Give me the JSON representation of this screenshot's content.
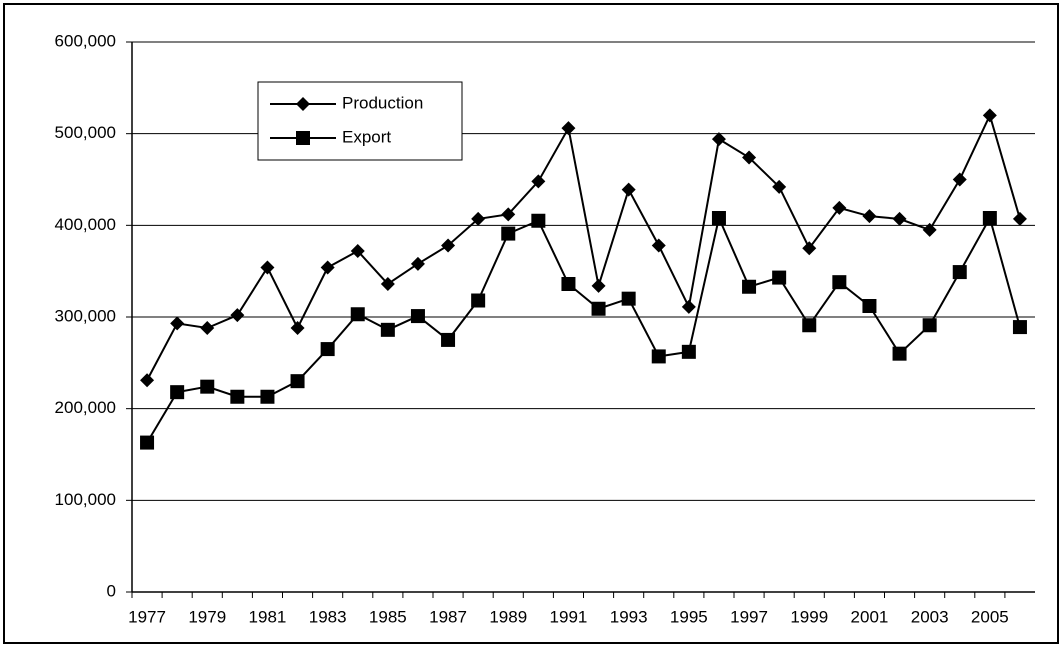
{
  "chart_data": {
    "type": "line",
    "categories": [
      "1977",
      null,
      "1979",
      null,
      "1981",
      null,
      "1983",
      null,
      "1985",
      null,
      "1987",
      null,
      "1989",
      null,
      "1991",
      null,
      "1993",
      null,
      "1995",
      null,
      "1997",
      null,
      "1999",
      null,
      "2001",
      null,
      "2003",
      null,
      "2005",
      null
    ],
    "series": [
      {
        "name": "Production",
        "color": "#000000",
        "marker": "diamond",
        "values": [
          231000,
          293000,
          288000,
          302000,
          354000,
          288000,
          354000,
          372000,
          336000,
          358000,
          378000,
          407000,
          412000,
          448000,
          506000,
          334000,
          439000,
          378000,
          311000,
          494000,
          474000,
          442000,
          375000,
          419000,
          410000,
          407000,
          395000,
          450000,
          520000,
          407000
        ]
      },
      {
        "name": "Export",
        "color": "#000000",
        "marker": "square",
        "values": [
          163000,
          218000,
          224000,
          213000,
          213000,
          230000,
          265000,
          303000,
          286000,
          301000,
          275000,
          318000,
          391000,
          405000,
          336000,
          309000,
          320000,
          257000,
          262000,
          408000,
          333000,
          343000,
          291000,
          338000,
          312000,
          260000,
          291000,
          349000,
          408000,
          289000
        ]
      }
    ],
    "ylim": [
      0,
      600000
    ],
    "yticks": [
      0,
      {
        "value": 100000,
        "label": "100,000"
      },
      {
        "value": 200000,
        "label": "200,000"
      },
      {
        "value": 300000,
        "label": "300,000"
      },
      {
        "value": 400000,
        "label": "400,000"
      },
      {
        "value": 500000,
        "label": "500,000"
      },
      {
        "value": 600000,
        "label": "600,000"
      }
    ],
    "grid": true
  }
}
